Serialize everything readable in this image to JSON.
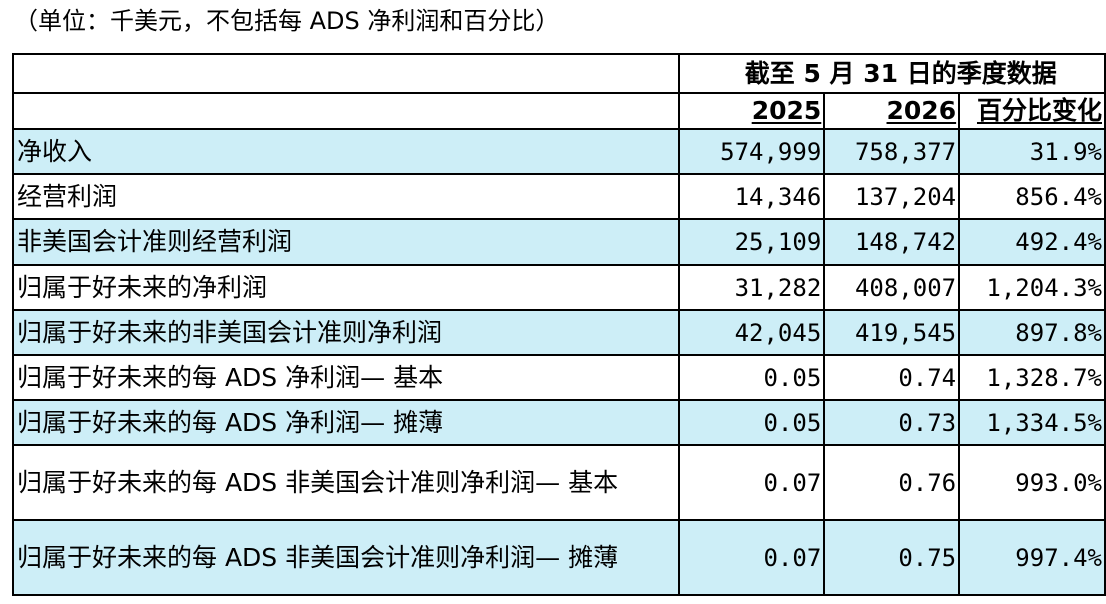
{
  "caption": "（单位：千美元，不包括每 ADS 净利润和百分比）",
  "header": {
    "period": "截至 5 月 31 日的季度数据",
    "col_2025": "2025",
    "col_2026": "2026",
    "col_change": "百分比变化"
  },
  "rows": [
    {
      "label": "净收入",
      "v2025": "574,999",
      "v2026": "758,377",
      "change": "31.9%"
    },
    {
      "label": "经营利润",
      "v2025": "14,346",
      "v2026": "137,204",
      "change": "856.4%"
    },
    {
      "label": "非美国会计准则经营利润",
      "v2025": "25,109",
      "v2026": "148,742",
      "change": "492.4%"
    },
    {
      "label": "归属于好未来的净利润",
      "v2025": "31,282",
      "v2026": "408,007",
      "change": "1,204.3%"
    },
    {
      "label": "归属于好未来的非美国会计准则净利润",
      "v2025": "42,045",
      "v2026": "419,545",
      "change": "897.8%"
    },
    {
      "label": "归属于好未来的每 ADS 净利润— 基本",
      "v2025": "0.05",
      "v2026": "0.74",
      "change": "1,328.7%"
    },
    {
      "label": "归属于好未来的每 ADS 净利润— 摊薄",
      "v2025": "0.05",
      "v2026": "0.73",
      "change": "1,334.5%"
    },
    {
      "label": "归属于好未来的每 ADS 非美国会计准则净利润— 基本",
      "v2025": "0.07",
      "v2026": "0.76",
      "change": "993.0%"
    },
    {
      "label": "归属于好未来的每 ADS 非美国会计准则净利润— 摊薄",
      "v2025": "0.07",
      "v2026": "0.75",
      "change": "997.4%"
    }
  ]
}
